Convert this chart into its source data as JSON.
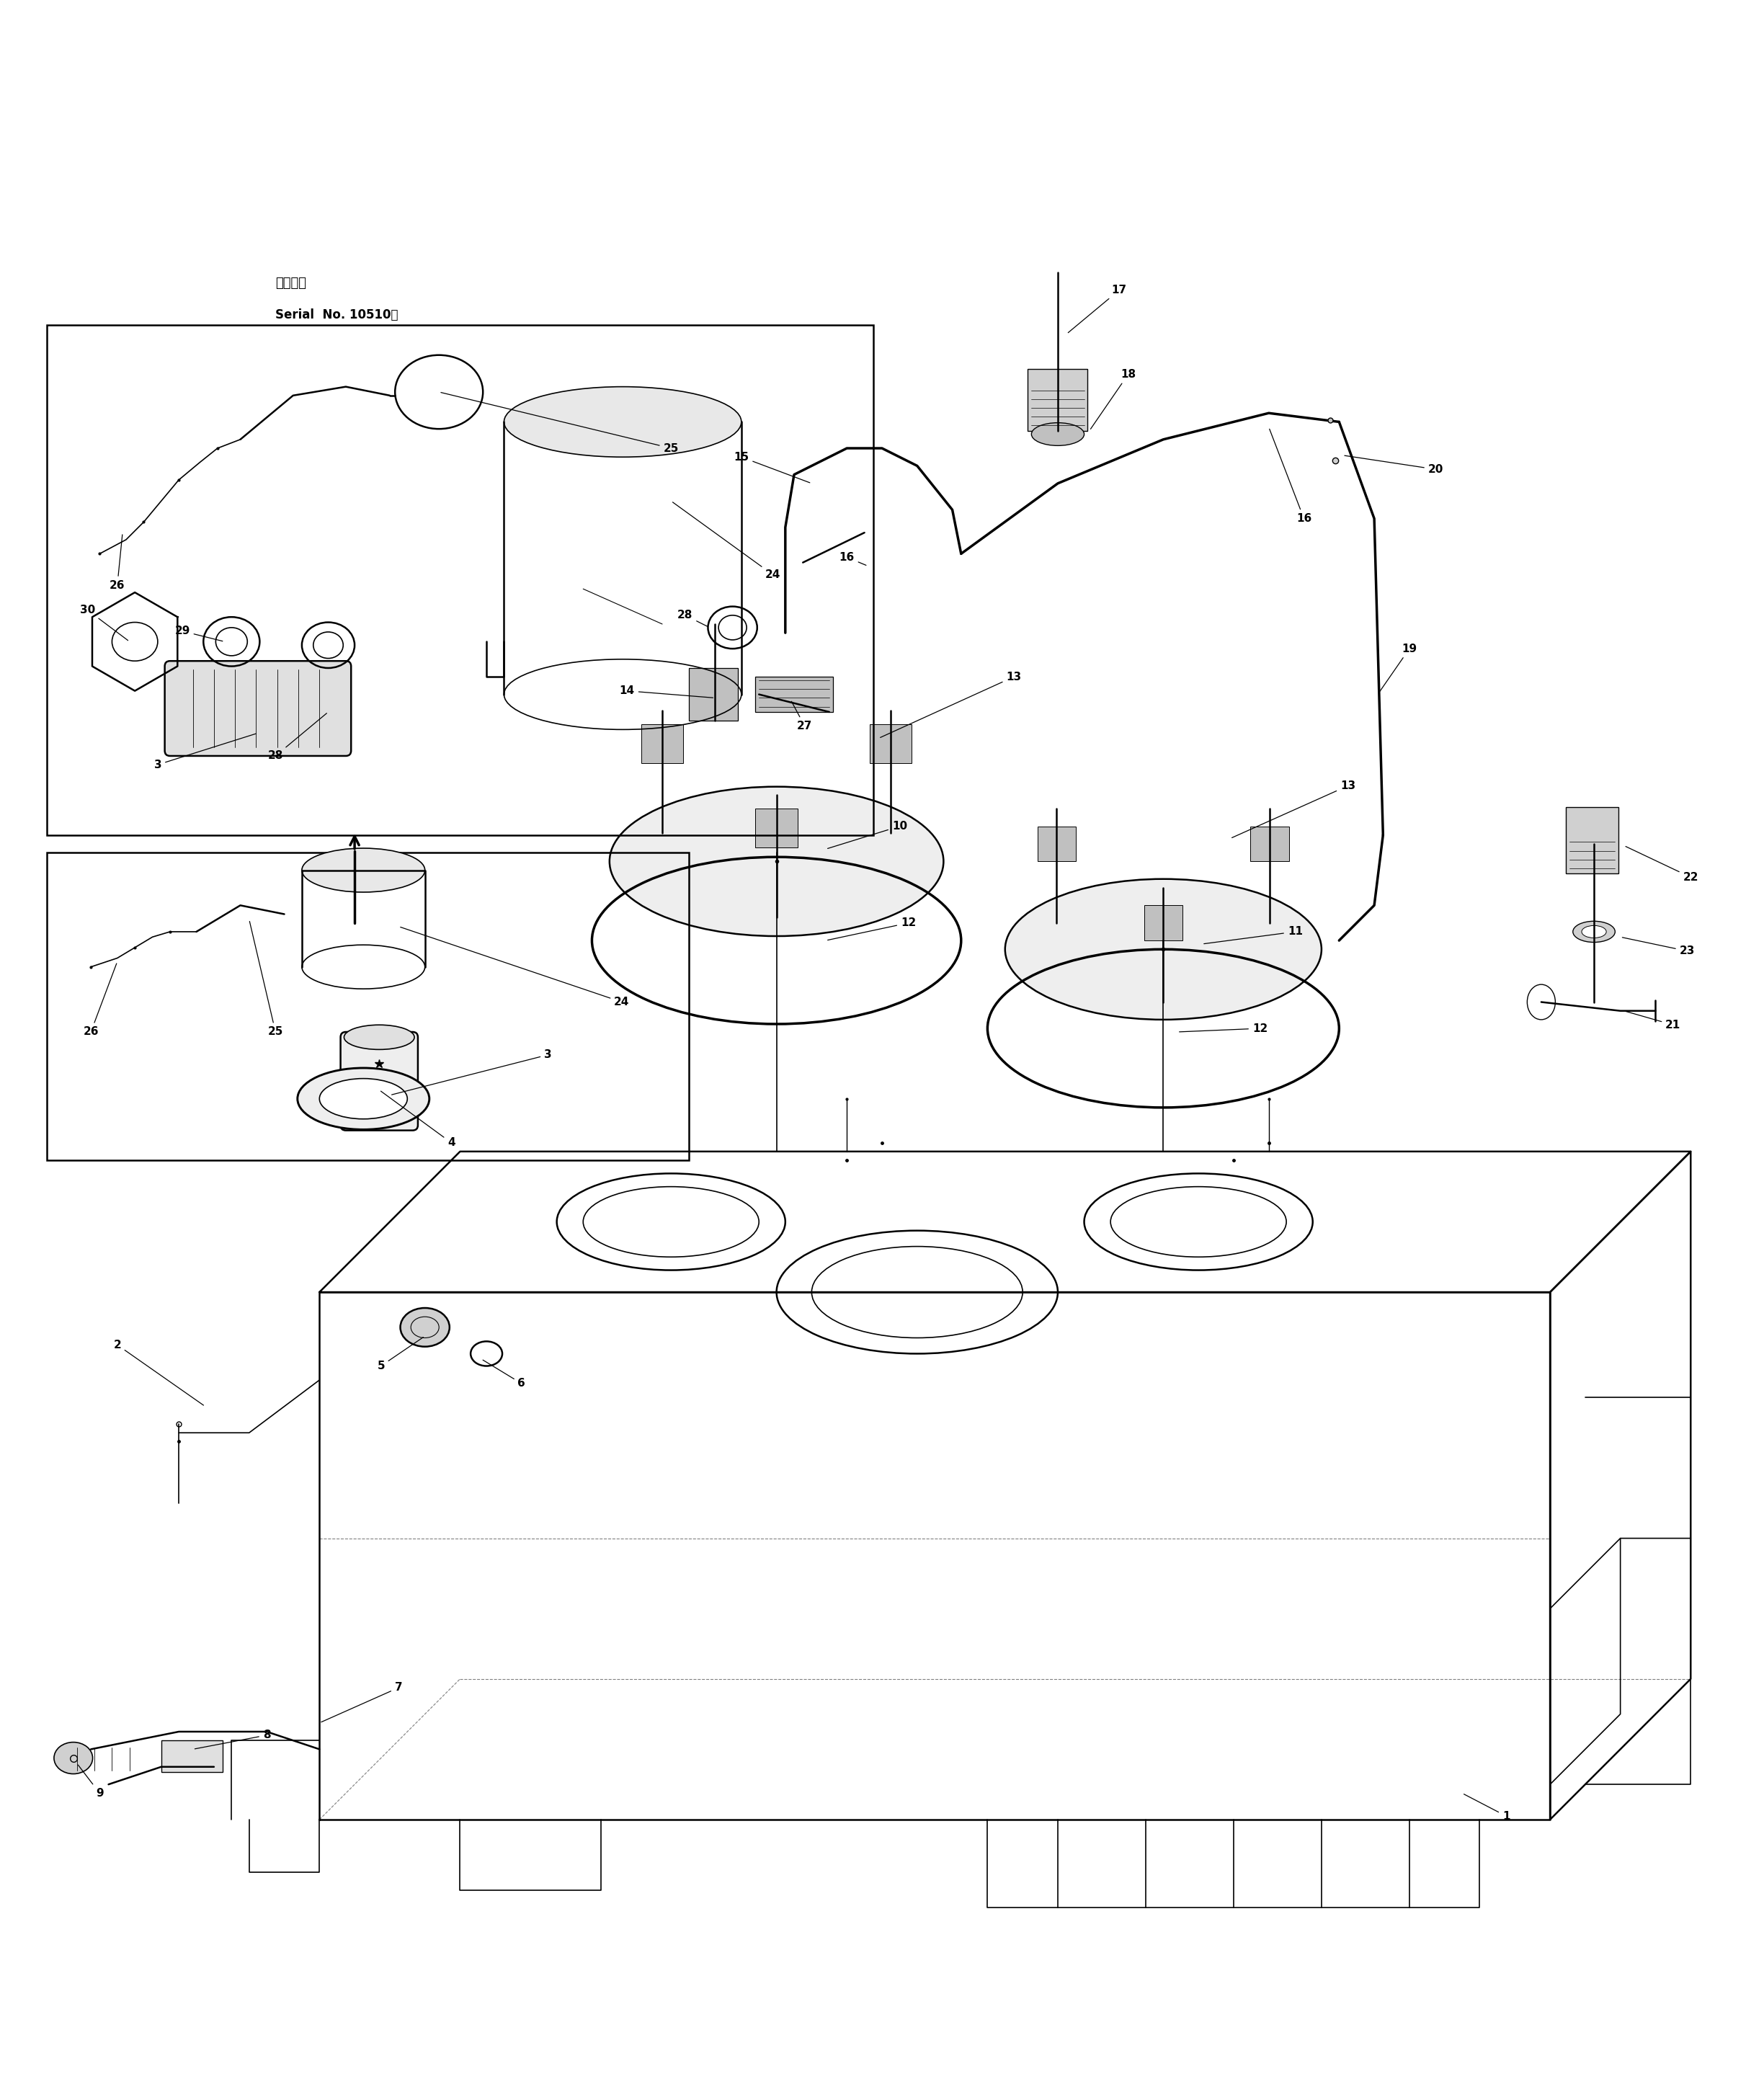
{
  "bg_color": "#ffffff",
  "line_color": "#000000",
  "fig_width": 24.48,
  "fig_height": 29.03,
  "title_jp": "適用号機",
  "title_en": "Serial  No. 10510～"
}
